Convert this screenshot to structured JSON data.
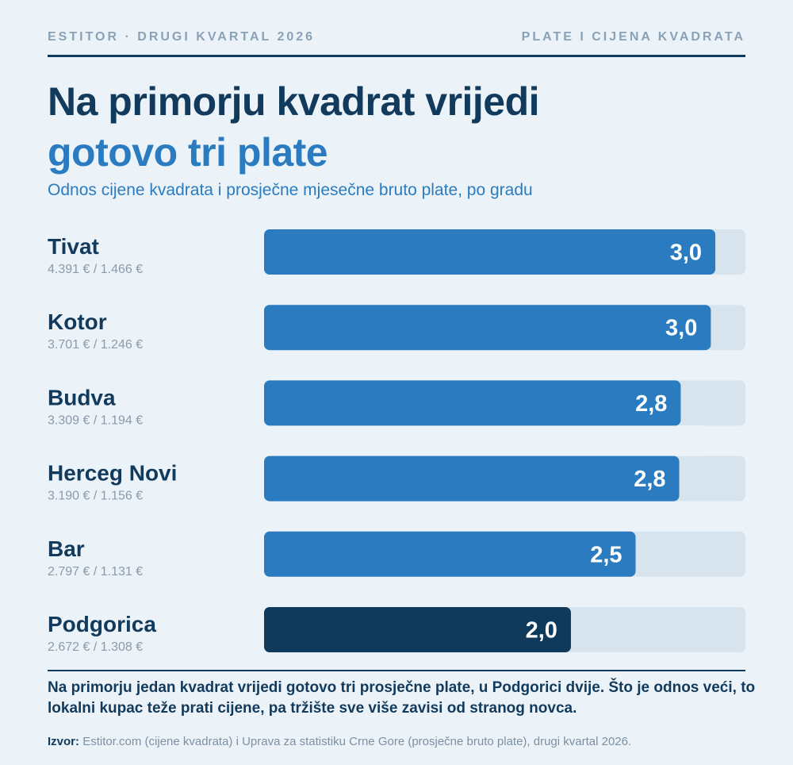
{
  "header": {
    "left": "ESTITOR · DRUGI KVARTAL 2026",
    "right": "PLATE I CIJENA KVADRATA"
  },
  "title": "Na primorju kvadrat vrijedi",
  "title_accent": "gotovo tri plate",
  "subtitle": "Odnos cijene kvadrata i prosječne mjesečne bruto plate, po gradu",
  "note": "Na primorju jedan kvadrat vrijedi gotovo tri prosječne plate, u Podgorici dvije. Što je odnos veći, to lokalni kupac teže prati cijene, pa tržište sve više zavisi od stranog novca.",
  "source": {
    "label": "Izvor:",
    "text": "Estitor.com (cijene kvadrata) i Uprava za statistiku Crne Gore (prosječne bruto plate), drugi kvartal 2026."
  },
  "chart_data": {
    "type": "bar",
    "orientation": "horizontal",
    "categories": [
      "Tivat",
      "Kotor",
      "Budva",
      "Herceg Novi",
      "Bar",
      "Podgorica"
    ],
    "details": [
      "4.391 € / 1.466 €",
      "3.701 € / 1.246 €",
      "3.309 € / 1.194 €",
      "3.190 € / 1.156 €",
      "2.797 € / 1.131 €",
      "2.672 € / 1.308 €"
    ],
    "values": [
      3.0,
      2.97,
      2.77,
      2.76,
      2.47,
      2.04
    ],
    "value_labels": [
      "3,0",
      "3,0",
      "2,8",
      "2,8",
      "2,5",
      "2,0"
    ],
    "xlim": [
      0,
      3.2
    ],
    "colors": {
      "bar": "#2a7bc0",
      "highlight": "#0f3a5c",
      "track": "#d8e4ed"
    },
    "highlight_category": "Podgorica"
  }
}
